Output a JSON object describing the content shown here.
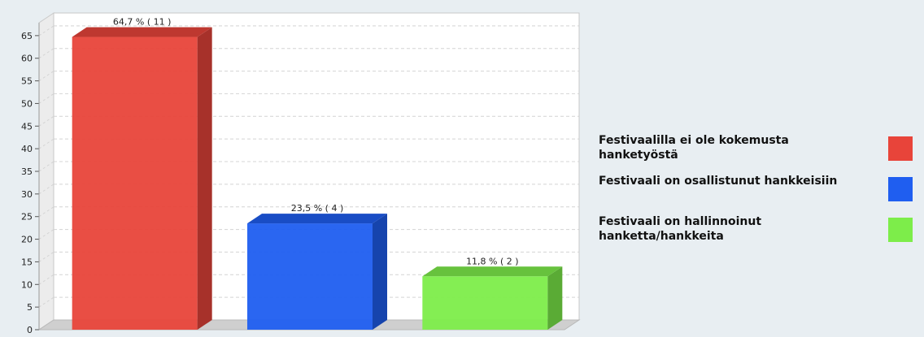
{
  "chart_data": {
    "type": "bar",
    "categories": [
      "Festivaalilla ei ole kokemusta hanketyöstä",
      "Festivaali on osallistunut hankkeisiin",
      "Festivaali on hallinnoinut hanketta/hankkeita"
    ],
    "values": [
      64.7,
      23.5,
      11.8
    ],
    "counts": [
      11,
      4,
      2
    ],
    "data_labels": [
      "64,7 % ( 11 )",
      "23,5 % ( 4 )",
      "11,8 % ( 2 )"
    ],
    "colors": [
      "#e8443a",
      "#1f5ef0",
      "#7ded4a"
    ],
    "y_ticks": [
      0,
      5,
      10,
      15,
      20,
      25,
      30,
      35,
      40,
      45,
      50,
      55,
      60,
      65
    ],
    "ylim": [
      0,
      70
    ],
    "grid": true,
    "legend_position": "right",
    "style": "3d-bar",
    "title": "",
    "xlabel": "",
    "ylabel": ""
  }
}
